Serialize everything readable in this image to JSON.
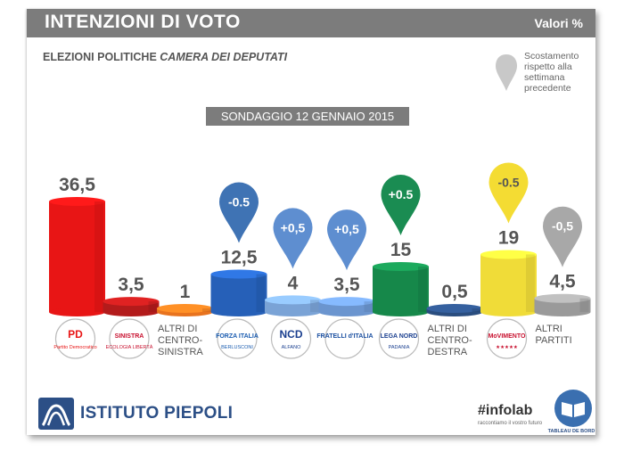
{
  "header": {
    "title": "INTENZIONI DI VOTO",
    "unit": "Valori %"
  },
  "subtitle": {
    "prefix": "ELEZIONI POLITICHE",
    "emphasis": "CAMERA DEI DEPUTATI"
  },
  "legend_note": "Scostamento rispetto alla settimana precedente",
  "banner": "SONDAGGIO 12 GENNAIO 2015",
  "chart_data": {
    "type": "bar",
    "title": "INTENZIONI DI VOTO",
    "subtitle": "SONDAGGIO 12 GENNAIO 2015",
    "categories": [
      "PD",
      "SEL",
      "ALTRI DI CENTRO-SINISTRA",
      "FORZA ITALIA",
      "NCD",
      "FRATELLI D'ITALIA",
      "LEGA NORD",
      "ALTRI DI CENTRO-DESTRA",
      "MOVIMENTO 5 STELLE",
      "ALTRI PARTITI"
    ],
    "values": [
      36.5,
      3.5,
      1,
      12.5,
      4,
      3.5,
      15,
      0.5,
      19,
      4.5
    ],
    "value_labels": [
      "36,5",
      "3,5",
      "1",
      "12,5",
      "4",
      "3,5",
      "15",
      "0,5",
      "19",
      "4,5"
    ],
    "changes": [
      null,
      null,
      null,
      "-0.5",
      "+0,5",
      "+0,5",
      "+0.5",
      null,
      "-0.5",
      "-0,5"
    ],
    "colors": [
      "#e81515",
      "#b31b1b",
      "#e8731e",
      "#2660b8",
      "#7aa3d6",
      "#6b95cf",
      "#16884a",
      "#2a4d7f",
      "#f0dc38",
      "#9a9a9a"
    ],
    "pin_colors": [
      null,
      null,
      null,
      "#3f73b4",
      "#5e8ed0",
      "#5e8ed0",
      "#1a8c52",
      null,
      "#f4dc33",
      "#a8a8a8"
    ],
    "text_labels": [
      "",
      "",
      "ALTRI DI CENTRO-SINISTRA",
      "",
      "",
      "",
      "",
      "ALTRI DI CENTRO-DESTRA",
      "",
      "ALTRI PARTITI"
    ],
    "ylim": [
      0,
      36.5
    ]
  },
  "logos": [
    {
      "name": "pd-logo",
      "text1": "PD",
      "text2": "Partito Democratico",
      "color": "#e81515"
    },
    {
      "name": "sel-logo",
      "text1": "SINISTRA",
      "text2": "ECOLOGIA LIBERTÀ",
      "color": "#c8102e"
    },
    null,
    {
      "name": "forza-italia-logo",
      "text1": "FORZA ITALIA",
      "text2": "BERLUSCONI",
      "color": "#1a5cb0"
    },
    {
      "name": "ncd-logo",
      "text1": "NCD",
      "text2": "ALFANO",
      "color": "#1a3f8f"
    },
    {
      "name": "fdi-logo",
      "text1": "FRATELLI d'ITALIA",
      "text2": "",
      "color": "#1a4fa0"
    },
    {
      "name": "lega-nord-logo",
      "text1": "LEGA NORD",
      "text2": "PADANIA",
      "color": "#1a3f8f"
    },
    null,
    {
      "name": "m5s-logo",
      "text1": "MoVIMENTO",
      "text2": "★★★★★",
      "color": "#c8102e"
    },
    null
  ],
  "footer": {
    "brand": "ISTITUTO PIEPOLI",
    "infolab": "#infolab",
    "infolab_sub": "raccontiamo il vostro futuro",
    "tableau": "TABLEAU DE BORD"
  }
}
